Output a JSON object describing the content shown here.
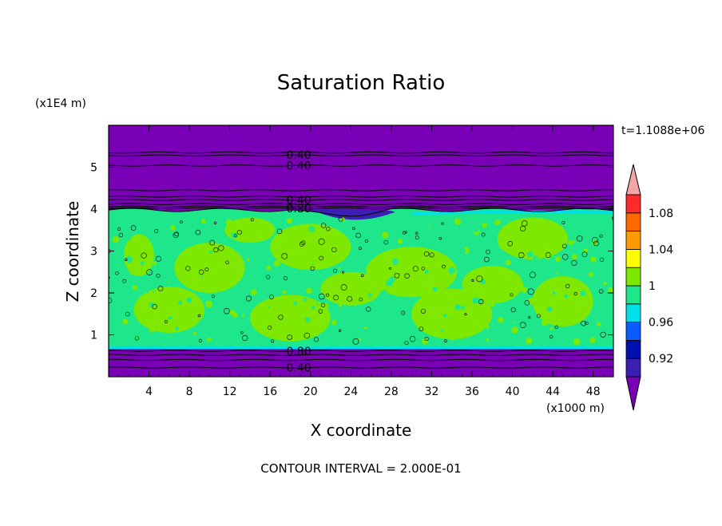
{
  "chart_data": {
    "type": "heatmap",
    "title": "Saturation Ratio",
    "time_label": "t=1.1088e+06",
    "xlabel": "X coordinate",
    "ylabel": "Z coordinate",
    "x_unit": "(x1000 m)",
    "y_unit": "(x1E4 m)",
    "xlim": [
      0,
      50
    ],
    "ylim": [
      0,
      6
    ],
    "x_ticks": [
      "4",
      "8",
      "12",
      "16",
      "20",
      "24",
      "28",
      "32",
      "36",
      "40",
      "44",
      "48"
    ],
    "x_tick_values": [
      4,
      8,
      12,
      16,
      20,
      24,
      28,
      32,
      36,
      40,
      44,
      48
    ],
    "y_ticks": [
      "1",
      "2",
      "3",
      "4",
      "5"
    ],
    "y_tick_values": [
      1,
      2,
      3,
      4,
      5
    ],
    "contour_labels": [
      {
        "text": "0.40",
        "x": 17.6,
        "z": 5.3
      },
      {
        "text": "0.40",
        "x": 17.6,
        "z": 5.04
      },
      {
        "text": "0.40",
        "x": 17.6,
        "z": 4.22
      },
      {
        "text": "0.80",
        "x": 17.6,
        "z": 4.02
      },
      {
        "text": "0.80",
        "x": 17.6,
        "z": 0.61
      },
      {
        "text": "0.40",
        "x": 17.6,
        "z": 0.22
      }
    ],
    "colorbar": {
      "levels": [
        0.92,
        0.96,
        1,
        1.04,
        1.08
      ],
      "labels": [
        "0.92",
        "0.96",
        "1",
        "1.04",
        "1.08"
      ],
      "colors": [
        "#7a00b8",
        "#3a1fb3",
        "#0010b0",
        "#0a5cff",
        "#00e0e8",
        "#1ee68a",
        "#7fe800",
        "#ffff00",
        "#ff9900",
        "#ff6a00",
        "#ff2a2a",
        "#f4a6a6"
      ]
    },
    "note": "CONTOUR INTERVAL = 2.000E-01"
  }
}
